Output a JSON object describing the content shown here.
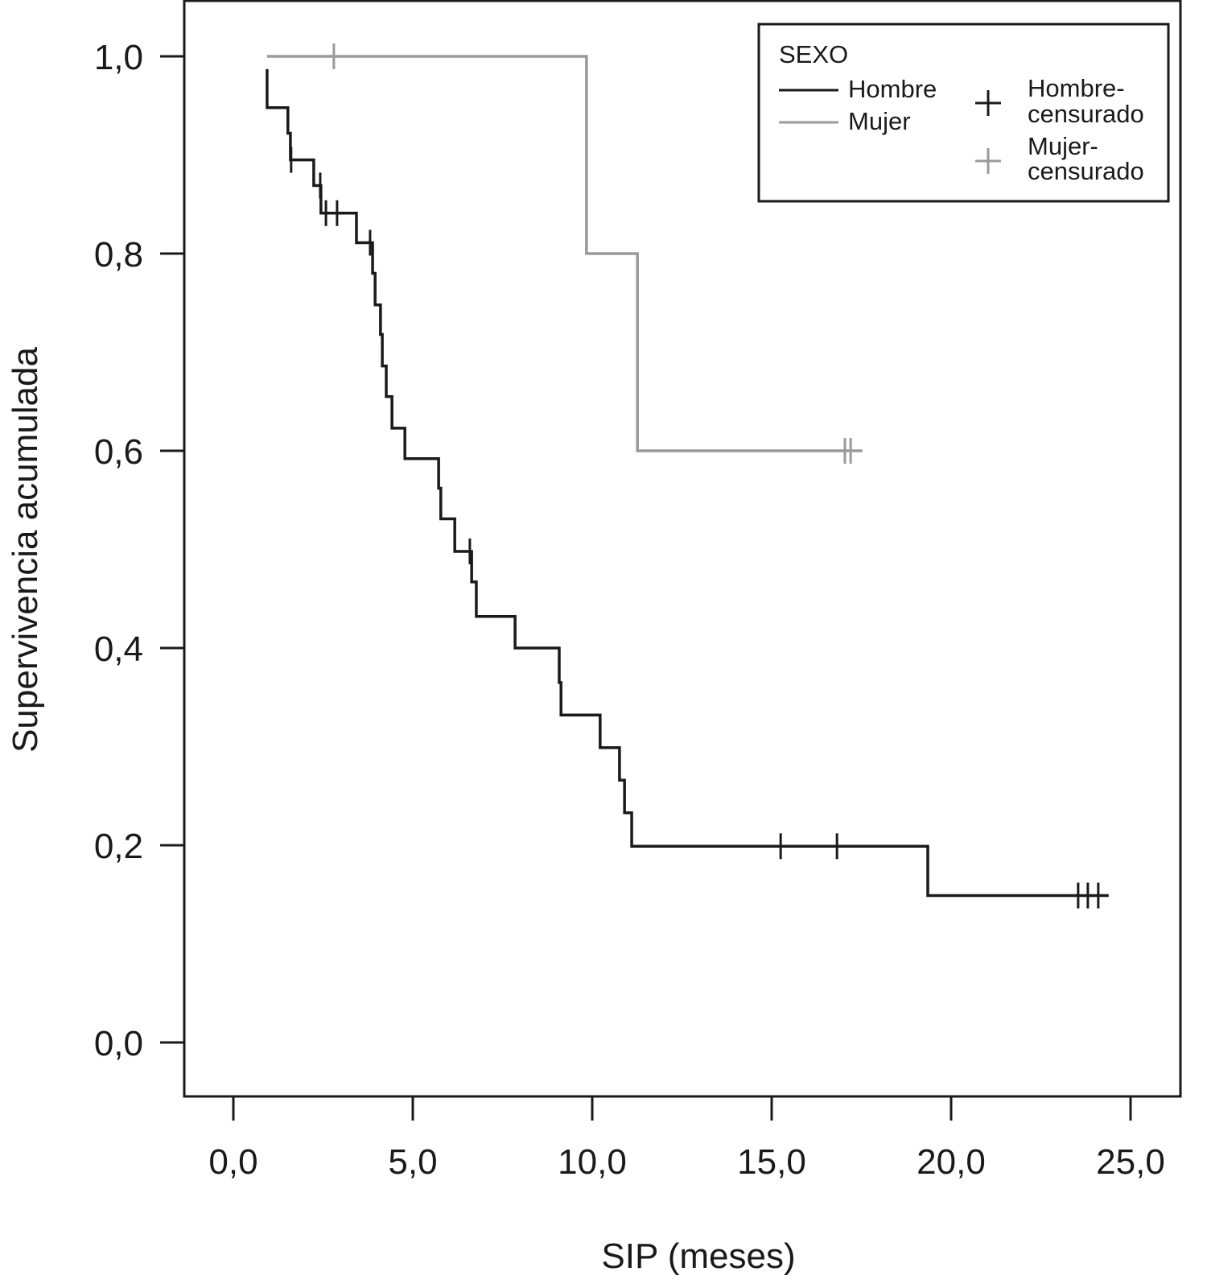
{
  "chart_data": {
    "type": "line",
    "subtype": "kaplan-meier",
    "xlabel": "SIP (meses)",
    "ylabel": "Supervivencia acumulada",
    "xlim": [
      0,
      25
    ],
    "ylim": [
      0,
      1
    ],
    "xticks": [
      "0,0",
      "5,0",
      "10,0",
      "15,0",
      "20,0",
      "25,0"
    ],
    "xtick_values": [
      0,
      5,
      10,
      15,
      20,
      25
    ],
    "yticks": [
      "0,0",
      "0,2",
      "0,4",
      "0,6",
      "0,8",
      "1,0"
    ],
    "ytick_values": [
      0,
      0.2,
      0.4,
      0.6,
      0.8,
      1.0
    ],
    "grid": false,
    "legend": {
      "placement": "top-right",
      "title": "SEXO",
      "entries": [
        {
          "label": "Hombre",
          "kind": "line",
          "color": "#1a1a1a"
        },
        {
          "label": "Mujer",
          "kind": "line",
          "color": "#9a9a9a"
        },
        {
          "label": "Hombre-",
          "label2": "censurado",
          "kind": "censor",
          "color": "#1a1a1a"
        },
        {
          "label": "Mujer-",
          "label2": "censurado",
          "kind": "censor",
          "color": "#9a9a9a"
        }
      ]
    },
    "series": [
      {
        "name": "Hombre",
        "color": "#1a1a1a",
        "start": [
          0.94,
          0.987
        ],
        "steps": [
          [
            0.94,
            0.948
          ],
          [
            1.52,
            0.922
          ],
          [
            1.59,
            0.895
          ],
          [
            2.24,
            0.869
          ],
          [
            2.44,
            0.841
          ],
          [
            3.43,
            0.811
          ],
          [
            3.88,
            0.78
          ],
          [
            3.95,
            0.748
          ],
          [
            4.1,
            0.718
          ],
          [
            4.15,
            0.686
          ],
          [
            4.26,
            0.655
          ],
          [
            4.42,
            0.623
          ],
          [
            4.78,
            0.592
          ],
          [
            5.72,
            0.562
          ],
          [
            5.78,
            0.531
          ],
          [
            6.17,
            0.498
          ],
          [
            6.64,
            0.467
          ],
          [
            6.77,
            0.432
          ],
          [
            7.85,
            0.4
          ],
          [
            9.08,
            0.365
          ],
          [
            9.13,
            0.332
          ],
          [
            10.22,
            0.299
          ],
          [
            10.76,
            0.266
          ],
          [
            10.9,
            0.233
          ],
          [
            11.1,
            0.199
          ],
          [
            19.35,
            0.149
          ]
        ],
        "end": 24.39,
        "censored": [
          1.61,
          2.42,
          2.58,
          2.89,
          3.81,
          6.59,
          15.25,
          16.82,
          23.54,
          23.81,
          24.1
        ]
      },
      {
        "name": "Mujer",
        "color": "#9a9a9a",
        "start": [
          0.94,
          1.0
        ],
        "steps": [
          [
            9.84,
            0.8
          ],
          [
            11.26,
            0.6
          ]
        ],
        "end": 17.53,
        "censored": [
          2.8,
          17.04,
          17.2
        ]
      }
    ]
  }
}
